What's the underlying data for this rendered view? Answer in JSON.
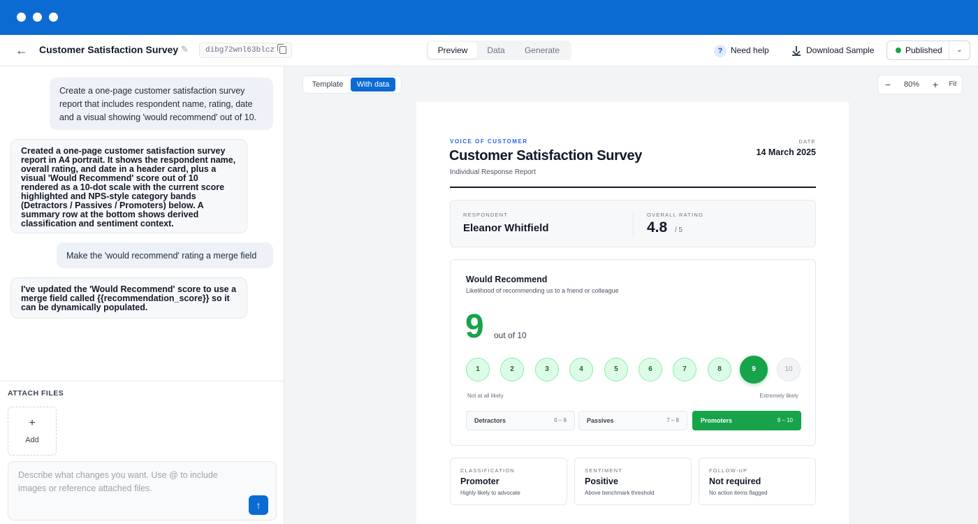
{
  "header": {
    "title": "Customer Satisfaction Survey",
    "doc_id": "dibg72wnl63blcz",
    "tabs": [
      "Preview",
      "Data",
      "Generate"
    ],
    "active_tab": "Preview",
    "help_label": "Need help",
    "download_label": "Download Sample",
    "status_label": "Published",
    "status_color": "#16a34a"
  },
  "chat": {
    "messages": [
      {
        "role": "user",
        "text": "Create a one-page customer satisfaction survey report that includes respondent name, rating, date and a visual showing 'would recommend' out of 10."
      },
      {
        "role": "assistant",
        "text": "Created a one-page customer satisfaction survey report in A4 portrait. It shows the respondent name, overall rating, and date in a header card, plus a visual 'Would Recommend' score out of 10 rendered as a 10-dot scale with the current score highlighted and NPS-style category bands (Detractors / Passives / Promoters) below. A summary row at the bottom shows derived classification and sentiment context."
      },
      {
        "role": "user",
        "text": "Make the 'would recommend' rating a merge field"
      },
      {
        "role": "assistant",
        "text": "I've updated the 'Would Recommend' score to use a merge field called {{recommendation_score}} so it can be dynamically populated."
      }
    ]
  },
  "attach": {
    "label": "ATTACH FILES",
    "add_label": "Add",
    "prompt_placeholder": "Describe what changes you want. Use @ to include images or reference attached files."
  },
  "preview": {
    "toggle": [
      "Template",
      "With data"
    ],
    "active_toggle": "With data",
    "zoom": "80%",
    "fit_label": "Fit"
  },
  "report": {
    "eyebrow": "VOICE OF CUSTOMER",
    "title": "Customer Satisfaction Survey",
    "subtitle": "Individual Response Report",
    "date_label": "DATE",
    "date": "14 March 2025",
    "respondent_label": "RESPONDENT",
    "respondent": "Eleanor Whitfield",
    "rating_label": "OVERALL RATING",
    "rating": "4.8",
    "rating_max": "/ 5",
    "recommend": {
      "title": "Would Recommend",
      "subtitle": "Likelihood of recommending us to a friend or colleague",
      "score": "9",
      "out_of": "out of 10",
      "scale": [
        "1",
        "2",
        "3",
        "4",
        "5",
        "6",
        "7",
        "8",
        "9",
        "10"
      ],
      "current": 9,
      "low_label": "Not at all likely",
      "high_label": "Extremely likely",
      "bands": [
        {
          "name": "Detractors",
          "range": "0 – 6",
          "active": false
        },
        {
          "name": "Passives",
          "range": "7 – 8",
          "active": false
        },
        {
          "name": "Promoters",
          "range": "9 – 10",
          "active": true
        }
      ]
    },
    "summary": [
      {
        "label": "CLASSIFICATION",
        "value": "Promoter",
        "note": "Highly likely to advocate"
      },
      {
        "label": "SENTIMENT",
        "value": "Positive",
        "note": "Above benchmark threshold"
      },
      {
        "label": "FOLLOW-UP",
        "value": "Not required",
        "note": "No action items flagged"
      }
    ]
  }
}
